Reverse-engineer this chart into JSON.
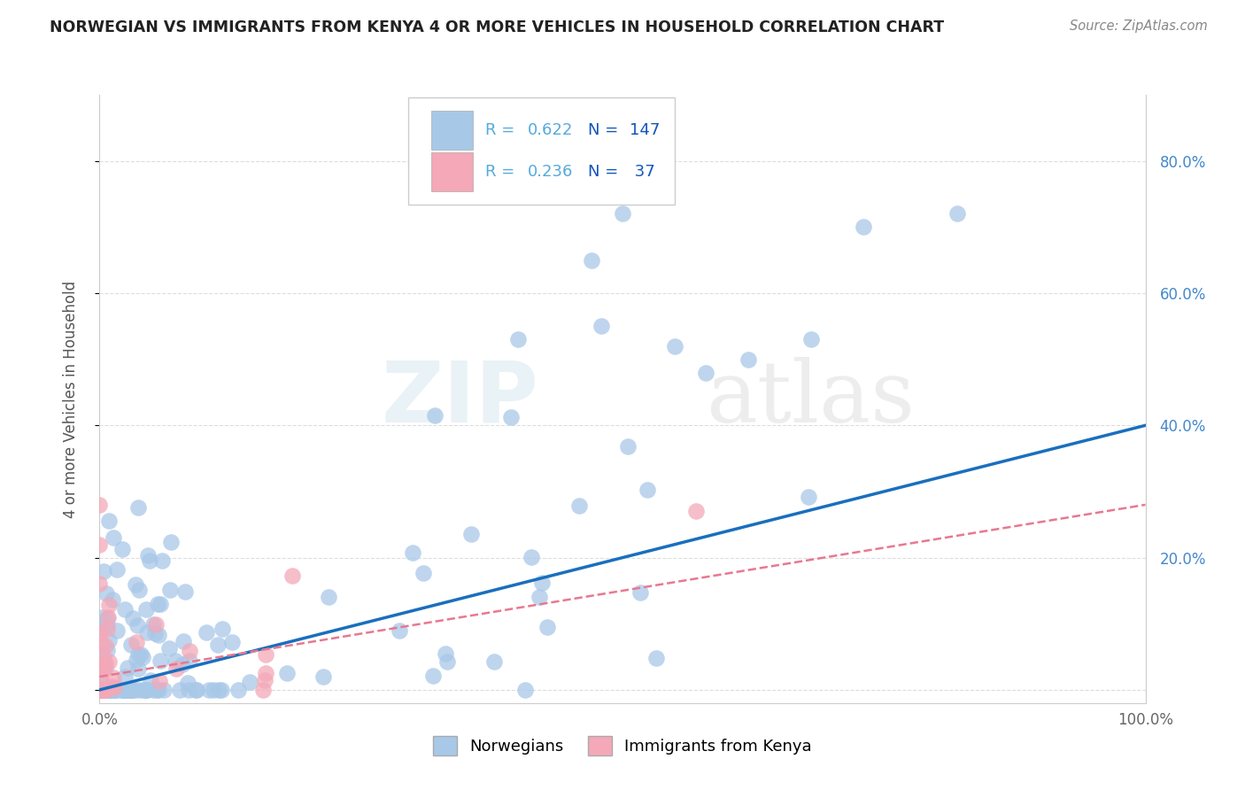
{
  "title": "NORWEGIAN VS IMMIGRANTS FROM KENYA 4 OR MORE VEHICLES IN HOUSEHOLD CORRELATION CHART",
  "source_text": "Source: ZipAtlas.com",
  "ylabel": "4 or more Vehicles in Household",
  "xlim": [
    0.0,
    1.0
  ],
  "ylim": [
    -0.02,
    0.9
  ],
  "x_ticks": [
    0.0,
    0.1,
    0.2,
    0.3,
    0.4,
    0.5,
    0.6,
    0.7,
    0.8,
    0.9,
    1.0
  ],
  "x_tick_labels": [
    "0.0%",
    "",
    "",
    "",
    "",
    "",
    "",
    "",
    "",
    "",
    "100.0%"
  ],
  "y_ticks": [
    0.0,
    0.2,
    0.4,
    0.6,
    0.8
  ],
  "y_tick_labels_right": [
    "",
    "20.0%",
    "40.0%",
    "60.0%",
    "80.0%"
  ],
  "norwegian_R": 0.622,
  "norwegian_N": 147,
  "kenya_R": 0.236,
  "kenya_N": 37,
  "norwegian_color": "#a8c8e8",
  "kenya_color": "#f4a8b8",
  "norwegian_line_color": "#1a6fbd",
  "kenya_line_color": "#e87890",
  "watermark_zip": "ZIP",
  "watermark_atlas": "atlas",
  "legend_R_color": "#55aadd",
  "legend_N_color": "#1155bb",
  "background_color": "#ffffff",
  "grid_color": "#dddddd",
  "nor_line_slope": 0.4,
  "nor_line_intercept": 0.0,
  "ken_line_slope": 0.26,
  "ken_line_intercept": 0.02
}
